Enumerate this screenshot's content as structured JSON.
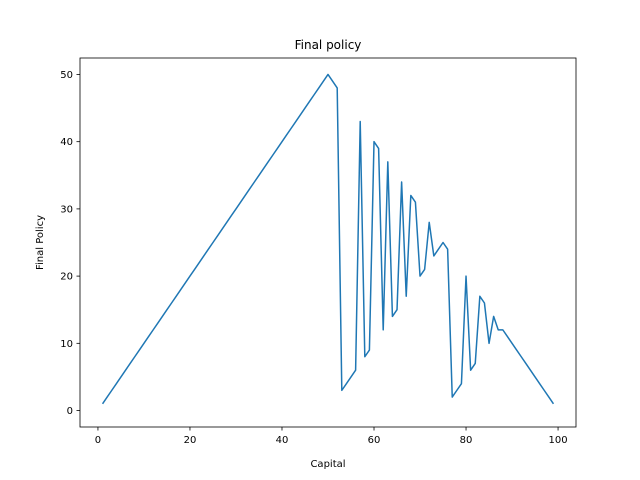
{
  "chart_data": {
    "type": "line",
    "title": "Final policy",
    "xlabel": "Capital",
    "ylabel": "Final Policy",
    "xlim": [
      -3.9,
      103.9
    ],
    "ylim": [
      -2.45,
      52.45
    ],
    "xticks": [
      0,
      20,
      40,
      60,
      80,
      100
    ],
    "yticks": [
      0,
      10,
      20,
      30,
      40,
      50
    ],
    "grid": false,
    "line_color": "#1f77b4",
    "series": [
      {
        "x": [
          1,
          2,
          3,
          4,
          5,
          6,
          7,
          8,
          9,
          10,
          11,
          12,
          13,
          14,
          15,
          16,
          17,
          18,
          19,
          20,
          21,
          22,
          23,
          24,
          25,
          26,
          27,
          28,
          29,
          30,
          31,
          32,
          33,
          34,
          35,
          36,
          37,
          38,
          39,
          40,
          41,
          42,
          43,
          44,
          45,
          46,
          47,
          48,
          49,
          50,
          51,
          52,
          53,
          54,
          55,
          56,
          57,
          58,
          59,
          60,
          61,
          62,
          63,
          64,
          65,
          66,
          67,
          68,
          69,
          70,
          71,
          72,
          73,
          74,
          75,
          76,
          77,
          78,
          79,
          80,
          81,
          82,
          83,
          84,
          85,
          86,
          87,
          88,
          89,
          90,
          91,
          92,
          93,
          94,
          95,
          96,
          97,
          98,
          99
        ],
        "values": [
          1,
          2,
          3,
          4,
          5,
          6,
          7,
          8,
          9,
          10,
          11,
          12,
          13,
          14,
          15,
          16,
          17,
          18,
          19,
          20,
          21,
          22,
          23,
          24,
          25,
          26,
          27,
          28,
          29,
          30,
          31,
          32,
          33,
          34,
          35,
          36,
          37,
          38,
          39,
          40,
          41,
          42,
          43,
          44,
          45,
          46,
          47,
          48,
          49,
          50,
          49,
          48,
          3,
          4,
          5,
          6,
          43,
          8,
          9,
          40,
          39,
          12,
          37,
          14,
          15,
          34,
          17,
          32,
          31,
          20,
          21,
          28,
          23,
          24,
          25,
          24,
          2,
          3,
          4,
          20,
          6,
          7,
          17,
          16,
          10,
          14,
          12,
          12,
          11,
          10,
          9,
          8,
          7,
          6,
          5,
          4,
          3,
          2,
          1
        ]
      }
    ]
  }
}
